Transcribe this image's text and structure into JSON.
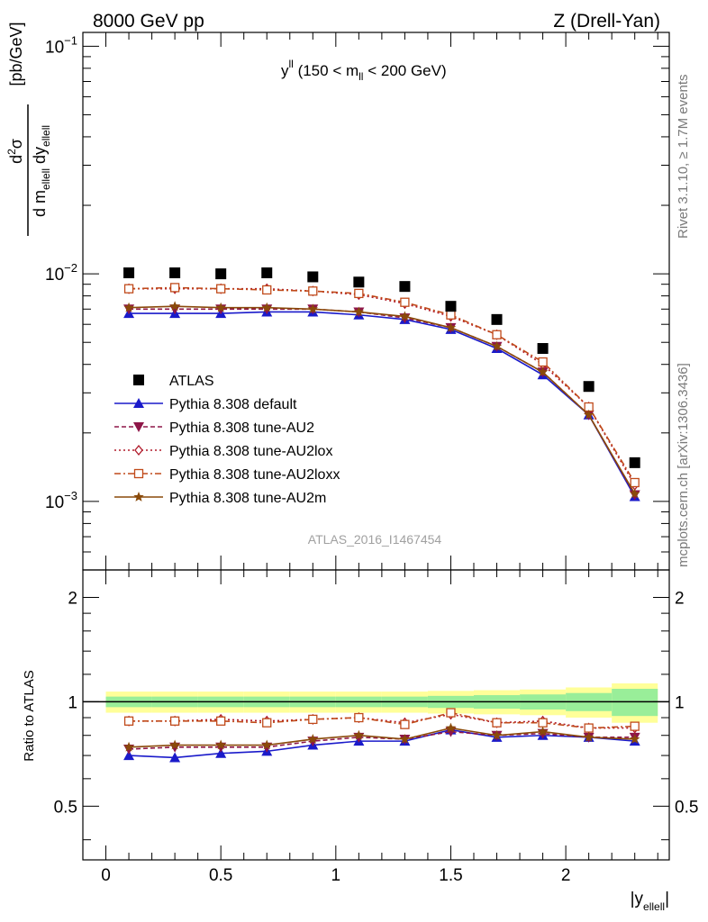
{
  "header": {
    "left": "8000 GeV pp",
    "right": "Z (Drell-Yan)"
  },
  "annotation": {
    "y": "y",
    "sup": "ll",
    "paren_open": " (150 < m",
    "sub": "ll",
    "paren_close": " < 200 GeV)"
  },
  "side_labels": {
    "rivet": "Rivet 3.1.10, ≥ 1.7M events",
    "mcplots": "mcplots.cern.ch [arXiv:1306.3436]"
  },
  "analysis_tag": "ATLAS_2016_I1467454",
  "axes": {
    "top_ylabel": {
      "numer_d": "d",
      "numer_sup": "2",
      "numer_sigma": "σ",
      "denom_d": "d m",
      "denom_sub1": "ellell",
      "denom_dy": " dy",
      "denom_sub2": "ellell",
      "unit": "[pb/GeV]"
    },
    "bottom_ylabel": "Ratio to ATLAS",
    "xlabel_main": "|y",
    "xlabel_sub": "ellell",
    "xlabel_end": "|",
    "x_ticks": [
      "0",
      "0.5",
      "1",
      "1.5",
      "2"
    ],
    "top_ticks": [
      {
        "base": "10",
        "exp": "−1",
        "value": 0.1
      },
      {
        "base": "10",
        "exp": "−2",
        "value": 0.01
      },
      {
        "base": "10",
        "exp": "−3",
        "value": 0.001
      }
    ],
    "ratio_ticks": [
      "2",
      "1",
      "0.5"
    ]
  },
  "legend": [
    {
      "label": "ATLAS",
      "marker": "square",
      "color": "#000000",
      "dash": "none"
    },
    {
      "label": "Pythia 8.308 default",
      "marker": "triangle-up",
      "color": "#1a1aca",
      "dash": "none"
    },
    {
      "label": "Pythia 8.308 tune-AU2",
      "marker": "triangle-down",
      "color": "#8e1648",
      "dash": "5,3"
    },
    {
      "label": "Pythia 8.308 tune-AU2lox",
      "marker": "diamond-open",
      "color": "#b01a2a",
      "dash": "2,3"
    },
    {
      "label": "Pythia 8.308 tune-AU2loxx",
      "marker": "square-open",
      "color": "#c04a1a",
      "dash": "7,3,2,3"
    },
    {
      "label": "Pythia 8.308 tune-AU2m",
      "marker": "star",
      "color": "#8a4a0a",
      "dash": "none"
    }
  ],
  "chart_data": {
    "type": "line",
    "x_range": [
      -0.1,
      2.45
    ],
    "top_ylim": [
      0.0005,
      0.115
    ],
    "top_scale": "log",
    "ratio_ylim": [
      0.35,
      2.4
    ],
    "ratio_scale": "log",
    "x": [
      0.1,
      0.3,
      0.5,
      0.7,
      0.9,
      1.1,
      1.3,
      1.5,
      1.7,
      1.9,
      2.1,
      2.3
    ],
    "bin_edges": [
      0,
      0.2,
      0.4,
      0.6,
      0.8,
      1.0,
      1.2,
      1.4,
      1.6,
      1.8,
      2.0,
      2.2,
      2.4
    ],
    "data": {
      "name": "ATLAS",
      "values": [
        0.0101,
        0.0101,
        0.01,
        0.0101,
        0.0097,
        0.0092,
        0.0088,
        0.0072,
        0.0063,
        0.0047,
        0.0032,
        0.00148
      ]
    },
    "series": [
      {
        "name": "Pythia 8.308 default",
        "values": [
          0.0067,
          0.0067,
          0.0067,
          0.0068,
          0.0068,
          0.0066,
          0.0063,
          0.0057,
          0.0047,
          0.0036,
          0.0024,
          0.00105
        ]
      },
      {
        "name": "Pythia 8.308 tune-AU2",
        "values": [
          0.007,
          0.007,
          0.007,
          0.007,
          0.007,
          0.0068,
          0.0064,
          0.0058,
          0.0048,
          0.0037,
          0.0024,
          0.00107
        ]
      },
      {
        "name": "Pythia 8.308 tune-AU2lox",
        "values": [
          0.0086,
          0.0086,
          0.0086,
          0.0086,
          0.0084,
          0.0081,
          0.0074,
          0.0065,
          0.0054,
          0.004,
          0.0026,
          0.00118
        ]
      },
      {
        "name": "Pythia 8.308 tune-AU2loxx",
        "values": [
          0.0086,
          0.0087,
          0.0086,
          0.0085,
          0.0084,
          0.0082,
          0.0075,
          0.0066,
          0.0054,
          0.0041,
          0.0026,
          0.00121
        ]
      },
      {
        "name": "Pythia 8.308 tune-AU2m",
        "values": [
          0.0071,
          0.0072,
          0.0071,
          0.0071,
          0.007,
          0.0068,
          0.0065,
          0.0058,
          0.0048,
          0.0037,
          0.0024,
          0.00108
        ]
      }
    ],
    "ratios": [
      [
        0.7,
        0.69,
        0.71,
        0.72,
        0.75,
        0.77,
        0.77,
        0.83,
        0.79,
        0.8,
        0.79,
        0.77
      ],
      [
        0.73,
        0.74,
        0.74,
        0.74,
        0.77,
        0.79,
        0.78,
        0.82,
        0.8,
        0.81,
        0.79,
        0.79
      ],
      [
        0.88,
        0.88,
        0.89,
        0.88,
        0.89,
        0.9,
        0.87,
        0.92,
        0.87,
        0.88,
        0.84,
        0.84
      ],
      [
        0.88,
        0.88,
        0.88,
        0.87,
        0.89,
        0.9,
        0.86,
        0.93,
        0.87,
        0.87,
        0.84,
        0.85
      ],
      [
        0.74,
        0.75,
        0.75,
        0.75,
        0.78,
        0.8,
        0.78,
        0.84,
        0.8,
        0.82,
        0.79,
        0.78
      ]
    ],
    "band_inner": [
      0.035,
      0.035,
      0.035,
      0.035,
      0.035,
      0.035,
      0.035,
      0.04,
      0.045,
      0.05,
      0.06,
      0.09
    ],
    "band_outer": [
      0.07,
      0.07,
      0.07,
      0.07,
      0.07,
      0.07,
      0.07,
      0.075,
      0.08,
      0.085,
      0.1,
      0.13
    ]
  }
}
